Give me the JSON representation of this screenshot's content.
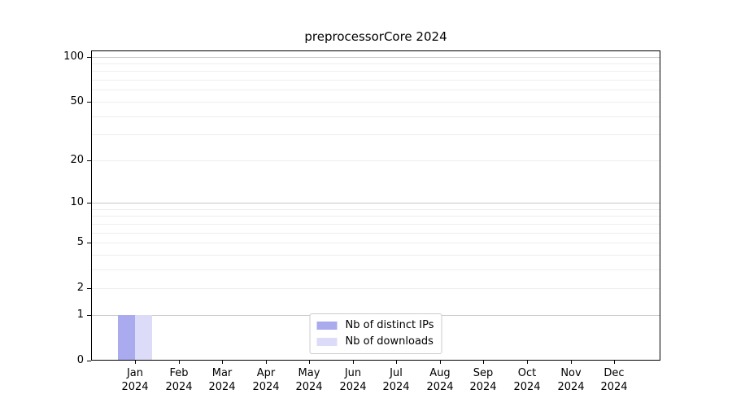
{
  "chart_data": {
    "type": "bar",
    "title": "preprocessorCore 2024",
    "categories": [
      "Jan 2024",
      "Feb 2024",
      "Mar 2024",
      "Apr 2024",
      "May 2024",
      "Jun 2024",
      "Jul 2024",
      "Aug 2024",
      "Sep 2024",
      "Oct 2024",
      "Nov 2024",
      "Dec 2024"
    ],
    "series": [
      {
        "name": "Nb of distinct IPs",
        "color": "#aaaaee",
        "values": [
          1,
          0,
          0,
          0,
          0,
          0,
          0,
          0,
          0,
          0,
          0,
          0
        ]
      },
      {
        "name": "Nb of downloads",
        "color": "#dcdcf8",
        "values": [
          1,
          0,
          0,
          0,
          0,
          0,
          0,
          0,
          0,
          0,
          0,
          0
        ]
      }
    ],
    "xlabel": "",
    "ylabel": "",
    "yscale": "log1p",
    "ylim": [
      0,
      110
    ],
    "yticks": [
      0,
      1,
      2,
      5,
      10,
      20,
      50,
      100
    ],
    "major_gridlines": [
      1,
      10,
      100
    ],
    "minor_gridlines": [
      2,
      3,
      4,
      5,
      6,
      7,
      8,
      9,
      20,
      30,
      40,
      50,
      60,
      70,
      80,
      90
    ],
    "grid": true,
    "legend": {
      "position": "lower center",
      "entries": [
        "Nb of distinct IPs",
        "Nb of downloads"
      ]
    }
  },
  "colors": {
    "background": "#ffffff",
    "axis": "#000000",
    "major_grid": "#c9c9c9",
    "minor_grid": "#eeeeee",
    "legend_border": "#cccccc",
    "bar_distinct_ips": "#aaaaee",
    "bar_downloads": "#dcdcf8"
  }
}
